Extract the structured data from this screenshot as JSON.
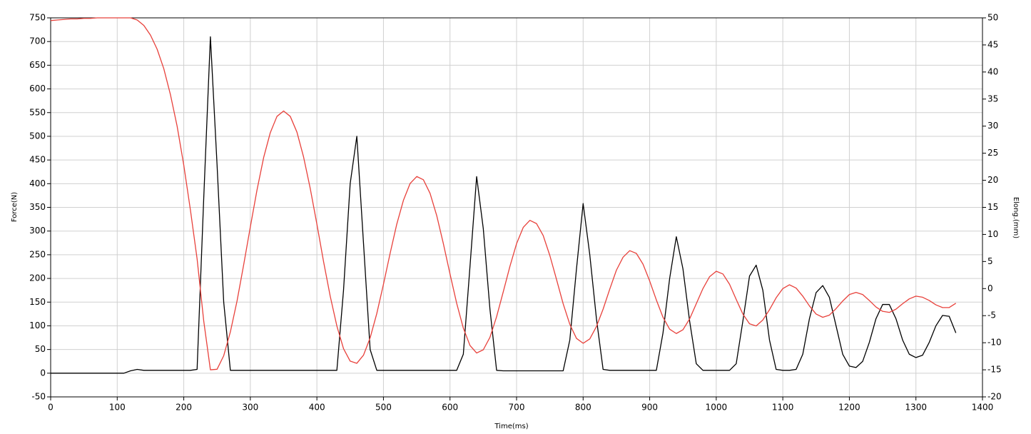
{
  "chart_data": {
    "type": "line",
    "x_label": "Time(ms)",
    "y_label": "Force(N)",
    "y2_label": "Elong.(mm)",
    "xlim": [
      0,
      1400
    ],
    "xticks": [
      0,
      100,
      200,
      300,
      400,
      500,
      600,
      700,
      800,
      900,
      1000,
      1100,
      1200,
      1300,
      1400
    ],
    "ylim": [
      -50,
      750
    ],
    "yticks": [
      -50,
      0,
      50,
      100,
      150,
      200,
      250,
      300,
      350,
      400,
      450,
      500,
      550,
      600,
      650,
      700,
      750
    ],
    "y2lim": [
      -20,
      50
    ],
    "y2ticks": [
      -20,
      -15,
      -10,
      -5,
      0,
      5,
      10,
      15,
      20,
      25,
      30,
      35,
      40,
      45,
      50
    ],
    "grid": true,
    "x": [
      0,
      10,
      20,
      30,
      40,
      50,
      60,
      70,
      80,
      90,
      100,
      110,
      120,
      130,
      140,
      150,
      160,
      170,
      180,
      190,
      200,
      210,
      220,
      230,
      240,
      250,
      260,
      270,
      280,
      290,
      300,
      310,
      320,
      330,
      340,
      350,
      360,
      370,
      380,
      390,
      400,
      410,
      420,
      430,
      440,
      450,
      460,
      470,
      480,
      490,
      500,
      510,
      520,
      530,
      540,
      550,
      560,
      570,
      580,
      590,
      600,
      610,
      620,
      630,
      640,
      650,
      660,
      670,
      680,
      690,
      700,
      710,
      720,
      730,
      740,
      750,
      760,
      770,
      780,
      790,
      800,
      810,
      820,
      830,
      840,
      850,
      860,
      870,
      880,
      890,
      900,
      910,
      920,
      930,
      940,
      950,
      960,
      970,
      980,
      990,
      1000,
      1010,
      1020,
      1030,
      1040,
      1050,
      1060,
      1070,
      1080,
      1090,
      1100,
      1110,
      1120,
      1130,
      1140,
      1150,
      1160,
      1170,
      1180,
      1190,
      1200,
      1210,
      1220,
      1230,
      1240,
      1250,
      1260,
      1270,
      1280,
      1290,
      1300,
      1310,
      1320,
      1330,
      1340,
      1350,
      1360
    ],
    "series": [
      {
        "color": "#000000",
        "axis": "y",
        "values": [
          0,
          0,
          0,
          0,
          0,
          0,
          0,
          0,
          0,
          0,
          0,
          0,
          5,
          8,
          6,
          6,
          6,
          6,
          6,
          6,
          6,
          6,
          8,
          370,
          710,
          440,
          150,
          6,
          6,
          6,
          6,
          6,
          6,
          6,
          6,
          6,
          6,
          6,
          6,
          6,
          6,
          6,
          6,
          6,
          175,
          400,
          500,
          275,
          50,
          6,
          6,
          6,
          6,
          6,
          6,
          6,
          6,
          6,
          6,
          6,
          6,
          6,
          40,
          225,
          415,
          305,
          135,
          6,
          5,
          5,
          5,
          5,
          5,
          5,
          5,
          5,
          5,
          5,
          70,
          220,
          358,
          250,
          115,
          8,
          6,
          6,
          6,
          6,
          6,
          6,
          6,
          6,
          85,
          200,
          288,
          220,
          110,
          20,
          6,
          6,
          6,
          6,
          6,
          20,
          110,
          205,
          228,
          175,
          70,
          8,
          6,
          6,
          8,
          40,
          115,
          170,
          185,
          160,
          100,
          40,
          15,
          12,
          25,
          65,
          115,
          145,
          145,
          115,
          70,
          40,
          33,
          38,
          65,
          100,
          122,
          120,
          85
        ]
      },
      {
        "color": "#e8413b",
        "axis": "y2",
        "values": [
          49.5,
          49.6,
          49.7,
          49.8,
          49.8,
          49.9,
          49.9,
          50,
          50,
          50,
          50,
          50,
          50,
          49.6,
          48.6,
          46.8,
          44.2,
          40.6,
          35.8,
          30.0,
          22.8,
          14.5,
          5.5,
          -6,
          -15,
          -14.9,
          -12.4,
          -8.0,
          -2.3,
          4.4,
          11.4,
          18.2,
          24.2,
          28.8,
          31.8,
          32.8,
          31.8,
          28.9,
          24.3,
          18.5,
          11.9,
          5.0,
          -1.4,
          -6.9,
          -11.1,
          -13.4,
          -13.8,
          -12.3,
          -9.1,
          -4.6,
          0.8,
          6.5,
          11.9,
          16.3,
          19.4,
          20.7,
          20.1,
          17.6,
          13.5,
          8.3,
          2.7,
          -2.7,
          -7.3,
          -10.5,
          -11.9,
          -11.3,
          -9.0,
          -5.2,
          -0.6,
          4.1,
          8.3,
          11.3,
          12.6,
          12.0,
          9.8,
          6.1,
          1.7,
          -2.8,
          -6.6,
          -9.2,
          -10.1,
          -9.3,
          -7.0,
          -3.8,
          -0.1,
          3.4,
          5.8,
          7.0,
          6.5,
          4.5,
          1.4,
          -2.1,
          -5.3,
          -7.5,
          -8.3,
          -7.6,
          -5.6,
          -2.8,
          0.0,
          2.2,
          3.2,
          2.7,
          0.8,
          -2.0,
          -4.7,
          -6.5,
          -6.9,
          -5.8,
          -3.9,
          -1.7,
          0.0,
          0.7,
          0.1,
          -1.4,
          -3.2,
          -4.7,
          -5.3,
          -4.9,
          -3.7,
          -2.3,
          -1.1,
          -0.7,
          -1.1,
          -2.2,
          -3.4,
          -4.2,
          -4.4,
          -3.8,
          -2.8,
          -1.9,
          -1.4,
          -1.6,
          -2.2,
          -3.0,
          -3.5,
          -3.5,
          -2.7
        ]
      }
    ]
  }
}
